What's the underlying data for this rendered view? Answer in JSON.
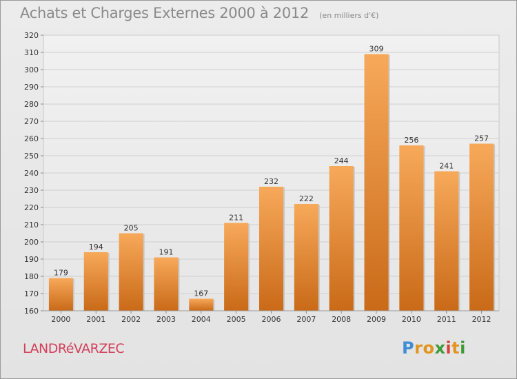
{
  "header": {
    "title": "Achats et Charges Externes 2000 à 2012",
    "subtitle": "(en milliers d'€)"
  },
  "footer": {
    "commune": "LANDRéVARZEC",
    "logo_letters": [
      {
        "char": "P",
        "color": "#3d8ed6"
      },
      {
        "char": "r",
        "color": "#e2941e"
      },
      {
        "char": "o",
        "color": "#e2941e"
      },
      {
        "char": "x",
        "color": "#3f9a3a"
      },
      {
        "char": "i",
        "color": "#d8403a"
      },
      {
        "char": "t",
        "color": "#e2941e"
      },
      {
        "char": "i",
        "color": "#3f9a3a"
      }
    ]
  },
  "chart_data": {
    "type": "bar",
    "title": "Achats et Charges Externes 2000 à 2012",
    "categories": [
      "2000",
      "2001",
      "2002",
      "2003",
      "2004",
      "2005",
      "2006",
      "2007",
      "2008",
      "2009",
      "2010",
      "2011",
      "2012"
    ],
    "values": [
      179,
      194,
      205,
      191,
      167,
      211,
      232,
      222,
      244,
      309,
      256,
      241,
      257
    ],
    "ylim": [
      160,
      320
    ],
    "yticks": [
      160,
      170,
      180,
      190,
      200,
      210,
      220,
      230,
      240,
      250,
      260,
      270,
      280,
      290,
      300,
      310,
      320
    ],
    "grid": true,
    "xlabel": "",
    "ylabel": "",
    "bar_color_top": "#f7a95a",
    "bar_color_bottom": "#c96a18"
  }
}
